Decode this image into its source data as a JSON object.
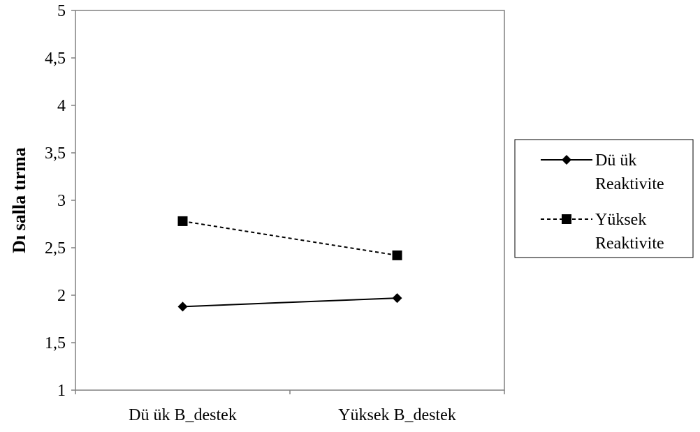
{
  "chart_data": {
    "type": "line",
    "ylabel": "Dı salla tırma",
    "xlabel": "",
    "categories": [
      "Dü ük B_destek",
      "Yüksek B_destek"
    ],
    "ylim": [
      1,
      5
    ],
    "yticks": [
      "1",
      "1,5",
      "2",
      "2,5",
      "3",
      "3,5",
      "4",
      "4,5",
      "5"
    ],
    "grid": false,
    "legend_position": "right",
    "series": [
      {
        "name": "Dü ük Reaktivite",
        "name_lines": [
          "Dü ük",
          "Reaktivite"
        ],
        "values": [
          1.88,
          1.97
        ],
        "marker": "diamond",
        "line_style": "solid",
        "color": "#000000"
      },
      {
        "name": "Yüksek Reaktivite",
        "name_lines": [
          "Yüksek",
          "Reaktivite"
        ],
        "values": [
          2.78,
          2.42
        ],
        "marker": "square",
        "line_style": "dashed",
        "color": "#000000"
      }
    ]
  }
}
